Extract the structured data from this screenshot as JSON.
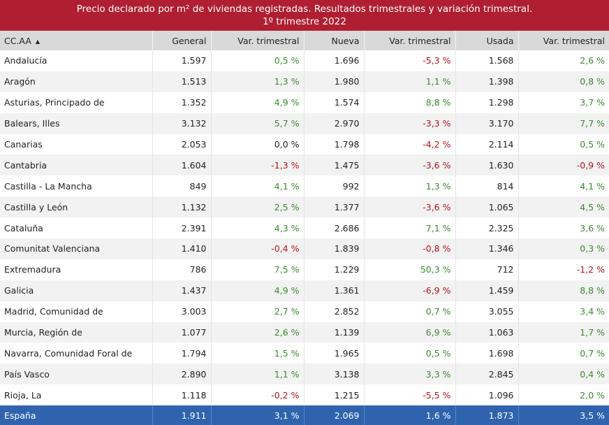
{
  "title": {
    "line1": "Precio declarado por m² de viviendas registradas. Resultados trimestrales y variación trimestral.",
    "line2": "1º trimestre 2022"
  },
  "headers": [
    "CC.AA",
    "General",
    "Var. trimestral",
    "Nueva",
    "Var. trimestral",
    "Usada",
    "Var. trimestral"
  ],
  "sort_indicator": "▲",
  "colors": {
    "title_bg": "#b01e32",
    "total_bg": "#2f63ad",
    "positive": "#3b8a2e",
    "negative": "#b3121f"
  },
  "chart_data": {
    "type": "table",
    "columns": [
      "CC.AA",
      "General",
      "Var. trimestral",
      "Nueva",
      "Var. trimestral",
      "Usada",
      "Var. trimestral"
    ],
    "rows": [
      [
        "Andalucía",
        "1.597",
        "0,5 %",
        "1.696",
        "-5,3 %",
        "1.568",
        "2,6 %"
      ],
      [
        "Aragón",
        "1.513",
        "1,3 %",
        "1.980",
        "1,1 %",
        "1.398",
        "0,8 %"
      ],
      [
        "Asturias, Principado de",
        "1.352",
        "4,9 %",
        "1.574",
        "8,8 %",
        "1.298",
        "3,7 %"
      ],
      [
        "Balears, Illes",
        "3.132",
        "5,7 %",
        "2.970",
        "-3,3 %",
        "3.170",
        "7,7 %"
      ],
      [
        "Canarias",
        "2.053",
        "0,0 %",
        "1.798",
        "-4,2 %",
        "2.114",
        "0,5 %"
      ],
      [
        "Cantabria",
        "1.604",
        "-1,3 %",
        "1.475",
        "-3,6 %",
        "1.630",
        "-0,9 %"
      ],
      [
        "Castilla - La Mancha",
        "849",
        "4,1 %",
        "992",
        "1,3 %",
        "814",
        "4,1 %"
      ],
      [
        "Castilla y León",
        "1.132",
        "2,5 %",
        "1.377",
        "-3,6 %",
        "1.065",
        "4,5 %"
      ],
      [
        "Cataluña",
        "2.391",
        "4,3 %",
        "2.686",
        "7,1 %",
        "2.325",
        "3,6 %"
      ],
      [
        "Comunitat Valenciana",
        "1.410",
        "-0,4 %",
        "1.839",
        "-0,8 %",
        "1.346",
        "0,3 %"
      ],
      [
        "Extremadura",
        "786",
        "7,5 %",
        "1.229",
        "50,3 %",
        "712",
        "-1,2 %"
      ],
      [
        "Galicia",
        "1.437",
        "4,9 %",
        "1.361",
        "-6,9 %",
        "1.459",
        "8,8 %"
      ],
      [
        "Madrid, Comunidad de",
        "3.003",
        "2,7 %",
        "2.852",
        "0,7 %",
        "3.055",
        "3,4 %"
      ],
      [
        "Murcia, Región de",
        "1.077",
        "2,6 %",
        "1.139",
        "6,9 %",
        "1.063",
        "1,7 %"
      ],
      [
        "Navarra, Comunidad Foral de",
        "1.794",
        "1,5 %",
        "1.965",
        "0,5 %",
        "1.698",
        "0,7 %"
      ],
      [
        "País Vasco",
        "2.890",
        "1,1 %",
        "3.138",
        "3,3 %",
        "2.845",
        "0,4 %"
      ],
      [
        "Rioja, La",
        "1.118",
        "-0,2 %",
        "1.215",
        "-5,5 %",
        "1.096",
        "2,0 %"
      ]
    ],
    "total": [
      "España",
      "1.911",
      "3,1 %",
      "2.069",
      "1,6 %",
      "1.873",
      "3,5 %"
    ]
  }
}
